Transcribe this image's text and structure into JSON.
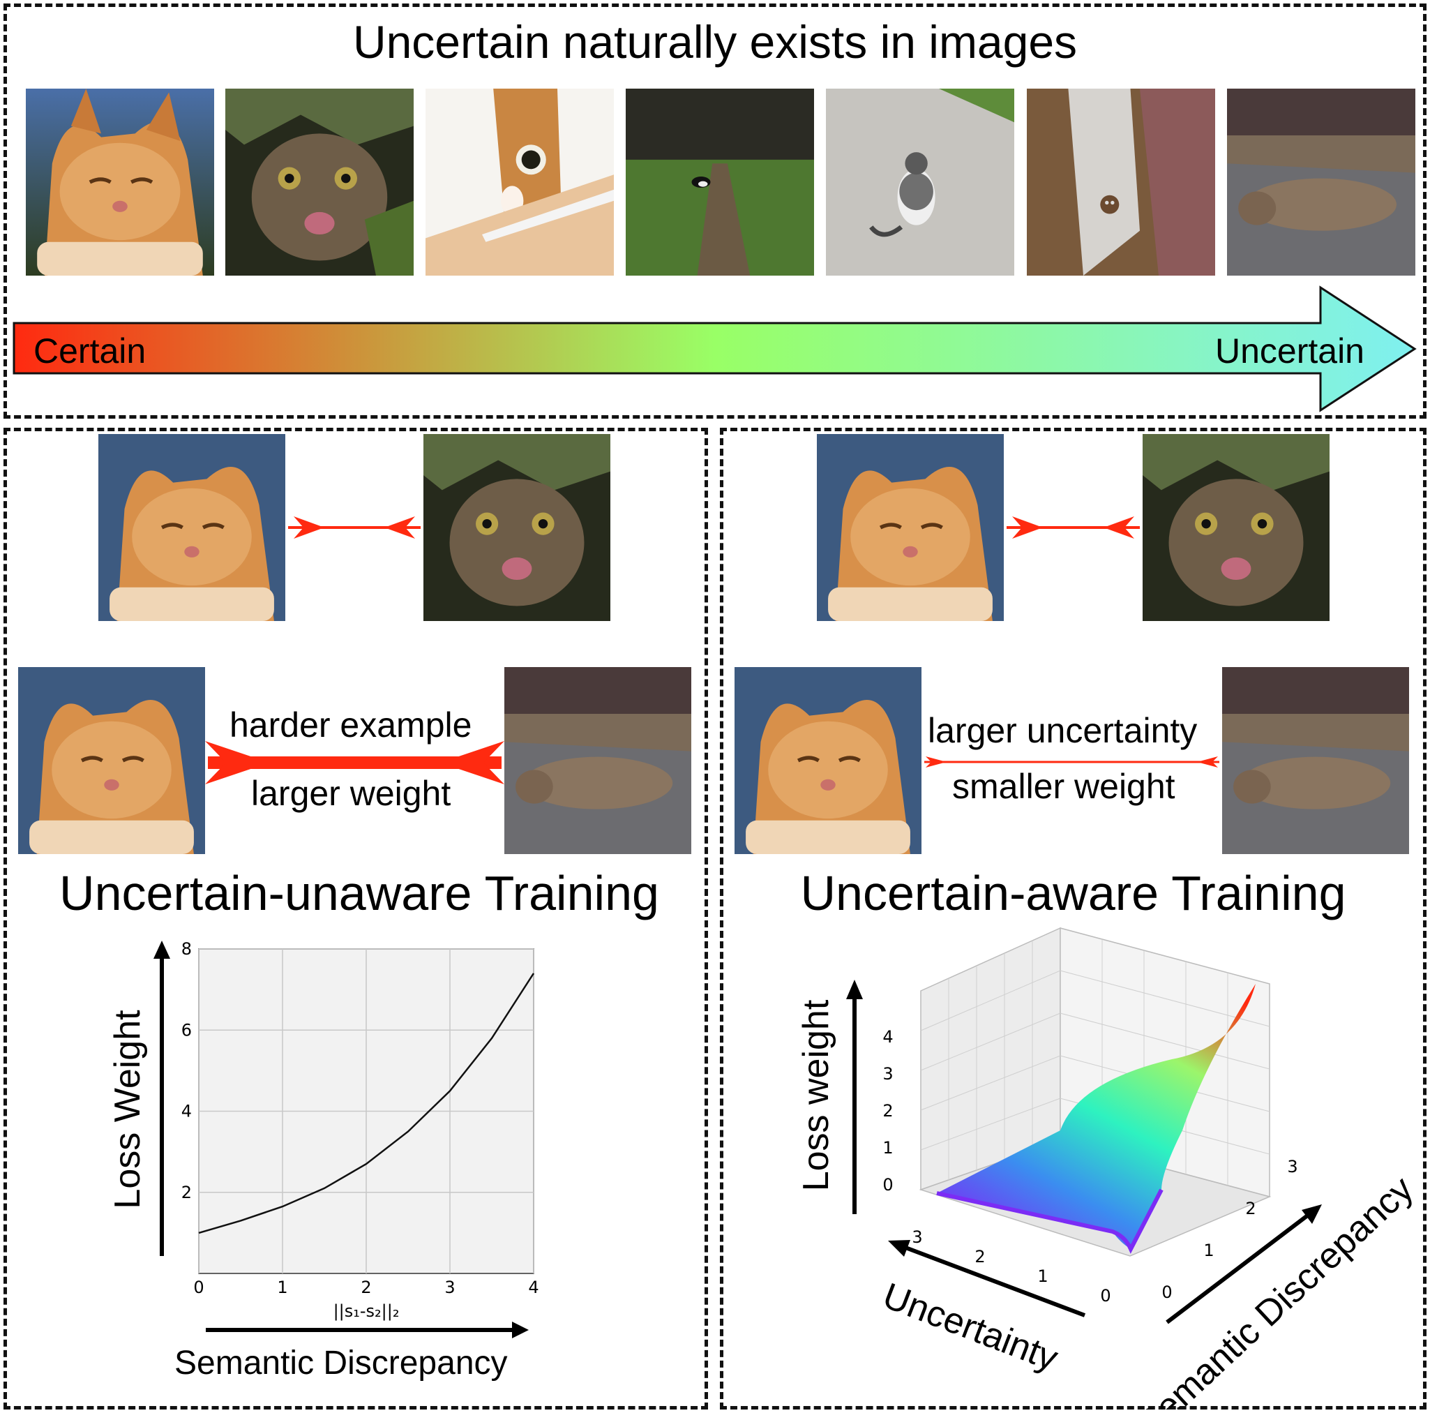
{
  "top": {
    "title": "Uncertain naturally exists in images",
    "scale_left": "Certain",
    "scale_right": "Uncertain",
    "photos": [
      {
        "subject": "close-up orange tabby cat, eyes closed"
      },
      {
        "subject": "brown tabby cat licking lips under branches"
      },
      {
        "subject": "calico cat peeking from cardboard box"
      },
      {
        "subject": "small black and white cat on grassy path"
      },
      {
        "subject": "grey and white cat sitting on pavement, back view"
      },
      {
        "subject": "tiny cat in corner of narrow room"
      },
      {
        "subject": "tabby cat lying curled on asphalt"
      }
    ],
    "gradient_colors": [
      "#ff2a10",
      "#99ff66",
      "#7ff0f0"
    ]
  },
  "left": {
    "heading": "Uncertain-unaware Training",
    "pair_label_top": "harder example",
    "pair_label_bottom": "larger weight",
    "arrow_color": "#ff2a10"
  },
  "right": {
    "heading": "Uncertain-aware Training",
    "pair_label_top": "larger uncertainty",
    "pair_label_bottom": "smaller weight",
    "arrow_color": "#ff2a10"
  },
  "chart_data": [
    {
      "type": "line",
      "xlabel": "||s₁-s₂||₂",
      "xlabel_caption": "Semantic Discrepancy",
      "ylabel": "Loss Weight",
      "xlim": [
        0,
        4
      ],
      "ylim": [
        0,
        8
      ],
      "xticks": [
        0,
        1,
        2,
        3,
        4
      ],
      "yticks": [
        2,
        4,
        6,
        8
      ],
      "grid": true,
      "series": [
        {
          "x": [
            0,
            0.5,
            1,
            1.5,
            2,
            2.5,
            3,
            3.5,
            4
          ],
          "y": [
            1.0,
            1.3,
            1.65,
            2.1,
            2.7,
            3.5,
            4.5,
            5.8,
            7.4
          ]
        }
      ]
    },
    {
      "type": "surface",
      "zlabel": "Loss weight",
      "xlabel": "Semantic Discrepancy",
      "ylabel": "Uncertainty",
      "zticks": [
        0,
        1,
        2,
        3,
        4
      ],
      "xticks": [
        0,
        1,
        2,
        3
      ],
      "yticks": [
        0,
        1,
        2,
        3
      ],
      "colormap": [
        "#7b2cf5",
        "#3b8df0",
        "#2ef2c0",
        "#9cf56b",
        "#ff2a10"
      ]
    }
  ]
}
